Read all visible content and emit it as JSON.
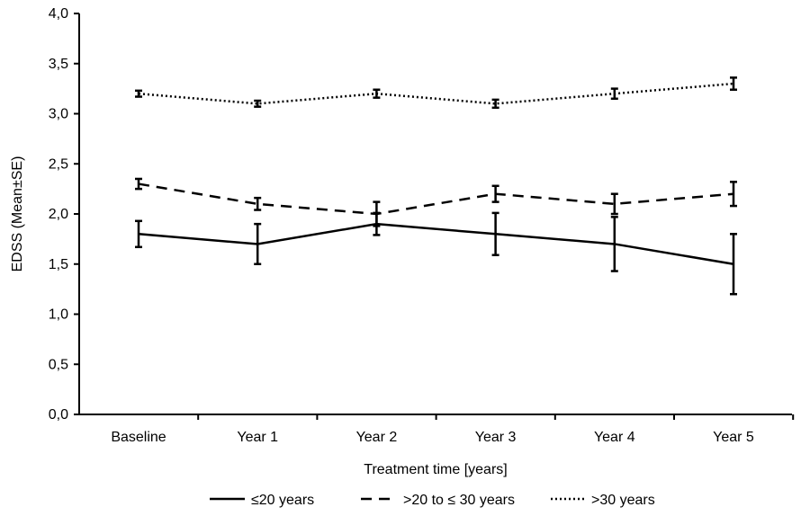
{
  "chart_data": {
    "type": "line",
    "title": "",
    "xlabel": "Treatment time [years]",
    "ylabel": "EDSS (Mean±SE)",
    "categories": [
      "Baseline",
      "Year 1",
      "Year 2",
      "Year 3",
      "Year 4",
      "Year 5"
    ],
    "ylim": [
      0,
      4
    ],
    "yticks": [
      "0,0",
      "0,5",
      "1,0",
      "1,5",
      "2,0",
      "2,5",
      "3,0",
      "3,5",
      "4,0"
    ],
    "grid": false,
    "legend_position": "bottom",
    "series": [
      {
        "name": "≤20 years",
        "style": "solid",
        "values": [
          1.8,
          1.7,
          1.9,
          1.8,
          1.7,
          1.5
        ],
        "se": [
          0.13,
          0.2,
          0.11,
          0.21,
          0.27,
          0.3
        ]
      },
      {
        "name": ">20 to ≤ 30 years",
        "style": "dashed",
        "values": [
          2.3,
          2.1,
          2.0,
          2.2,
          2.1,
          2.2
        ],
        "se": [
          0.05,
          0.06,
          0.12,
          0.08,
          0.1,
          0.12
        ]
      },
      {
        "name": ">30 years",
        "style": "dotted",
        "values": [
          3.2,
          3.1,
          3.2,
          3.1,
          3.2,
          3.3
        ],
        "se": [
          0.03,
          0.03,
          0.04,
          0.04,
          0.05,
          0.06
        ]
      }
    ]
  }
}
